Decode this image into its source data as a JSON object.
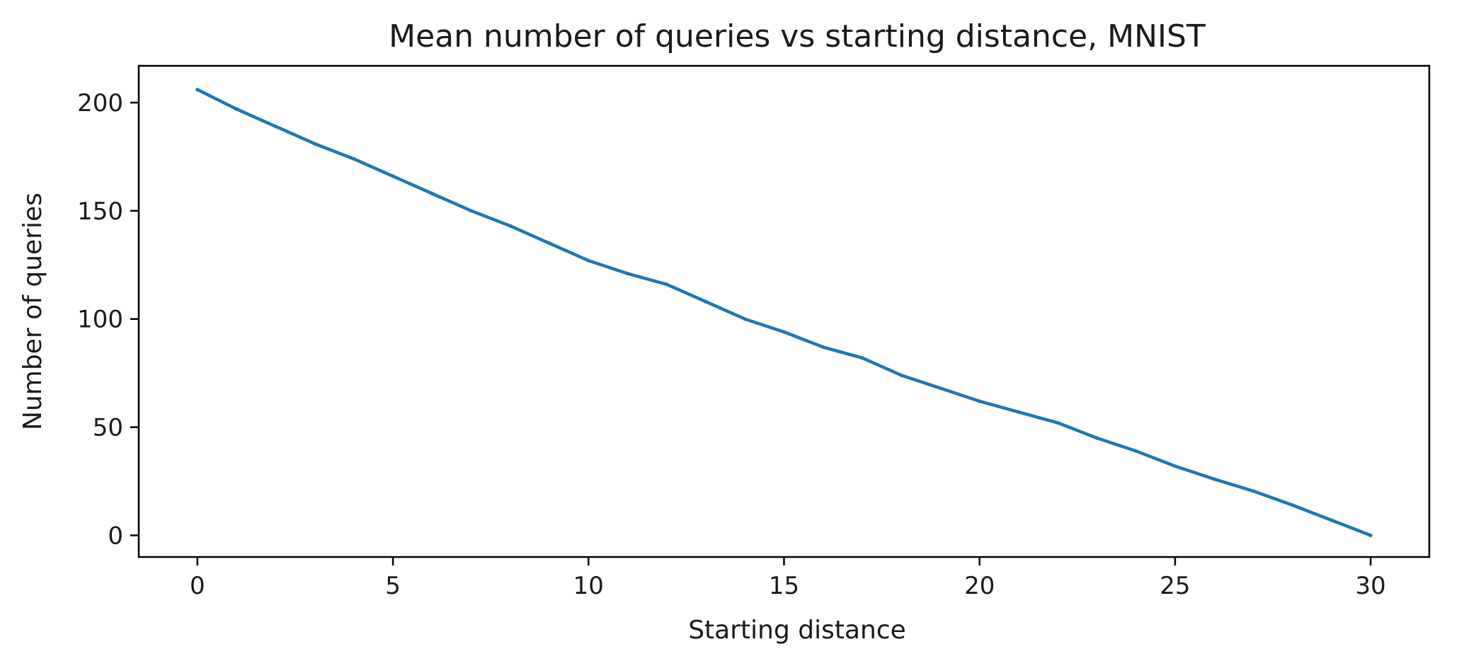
{
  "chart_data": {
    "type": "line",
    "title": "Mean number of queries vs starting distance, MNIST",
    "xlabel": "Starting distance",
    "ylabel": "Number of queries",
    "xlim": [
      -1.5,
      31.5
    ],
    "ylim": [
      -10,
      217
    ],
    "xticks": [
      0,
      5,
      10,
      15,
      20,
      25,
      30
    ],
    "yticks": [
      0,
      50,
      100,
      150,
      200
    ],
    "grid": false,
    "series_color": "#1f77b4",
    "x": [
      0,
      1,
      2,
      3,
      4,
      5,
      6,
      7,
      8,
      9,
      10,
      11,
      12,
      13,
      14,
      15,
      16,
      17,
      18,
      19,
      20,
      21,
      22,
      23,
      24,
      25,
      26,
      27,
      28,
      29,
      30
    ],
    "y": [
      206,
      197,
      189,
      181,
      174,
      166,
      158,
      150,
      143,
      135,
      127,
      121,
      116,
      108,
      100,
      94,
      87,
      82,
      74,
      68,
      62,
      57,
      52,
      45,
      39,
      32,
      26,
      20.5,
      14,
      7,
      0
    ]
  }
}
